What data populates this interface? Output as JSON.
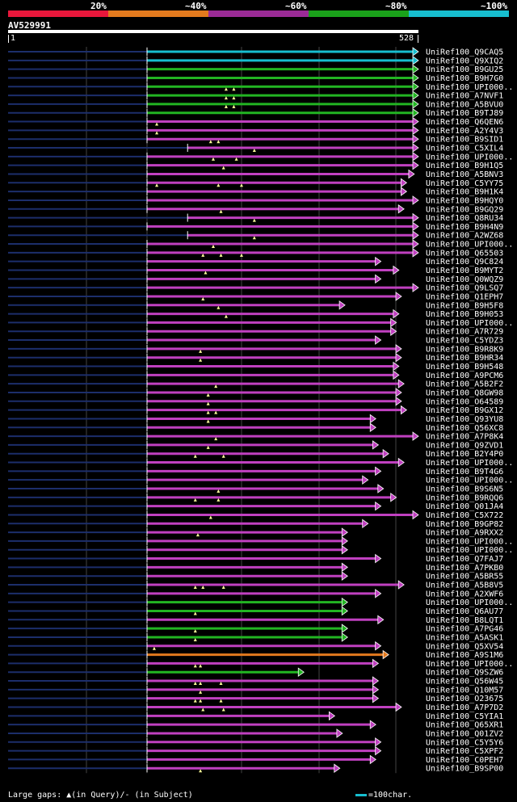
{
  "legend": {
    "labels": [
      "20%",
      "~40%",
      "~60%",
      "~80%",
      "~100%"
    ],
    "colors": [
      "#e8173b",
      "#e37a1e",
      "#9b2b96",
      "#1aa11a",
      "#17becf"
    ]
  },
  "query": {
    "title": "AV529991",
    "start_label": "1",
    "end_label": "528",
    "length": 528
  },
  "colors": {
    "magenta": "#c040c0",
    "green": "#22b522",
    "cyan": "#17becf",
    "orange": "#e37a1e",
    "navy": "#1c2e6b",
    "grid": "#444444",
    "gap_marker": "#ffff9a"
  },
  "footer": {
    "gaps_text": "Large gaps: ▲(in Query)/- (in Subject)",
    "scale_text": "=100char."
  },
  "hits": [
    {
      "name": "UniRef100_Q9CAQ5",
      "color": "cyan",
      "start": 1,
      "end": 528,
      "gaps": []
    },
    {
      "name": "UniRef100_Q9XIQ2",
      "color": "cyan",
      "start": 1,
      "end": 528,
      "gaps": []
    },
    {
      "name": "UniRef100_B9GU25",
      "color": "green",
      "start": 1,
      "end": 528,
      "gaps": []
    },
    {
      "name": "UniRef100_B9H7G0",
      "color": "green",
      "start": 1,
      "end": 528,
      "gaps": []
    },
    {
      "name": "UniRef100_UPI000..",
      "color": "green",
      "start": 1,
      "end": 528,
      "gaps": [
        155,
        170
      ]
    },
    {
      "name": "UniRef100_A7NVF1",
      "color": "green",
      "start": 1,
      "end": 528,
      "gaps": [
        155,
        170
      ]
    },
    {
      "name": "UniRef100_A5BVU0",
      "color": "green",
      "start": 1,
      "end": 528,
      "gaps": [
        155,
        170
      ]
    },
    {
      "name": "UniRef100_B9TJ89",
      "color": "green",
      "start": 1,
      "end": 528,
      "gaps": []
    },
    {
      "name": "UniRef100_Q6QEN6",
      "color": "magenta",
      "start": 1,
      "end": 528,
      "gaps": [
        20
      ]
    },
    {
      "name": "UniRef100_A2Y4V3",
      "color": "magenta",
      "start": 1,
      "end": 528,
      "gaps": [
        20
      ]
    },
    {
      "name": "UniRef100_B9SID1",
      "color": "magenta",
      "start": 1,
      "end": 528,
      "gaps": [
        125,
        140
      ]
    },
    {
      "name": "UniRef100_C5XIL4",
      "color": "magenta",
      "start": 80,
      "end": 528,
      "gaps": [
        210
      ]
    },
    {
      "name": "UniRef100_UPI000..",
      "color": "magenta",
      "start": 1,
      "end": 528,
      "gaps": [
        130,
        175
      ]
    },
    {
      "name": "UniRef100_B9H1Q5",
      "color": "magenta",
      "start": 1,
      "end": 528,
      "gaps": [
        150
      ]
    },
    {
      "name": "UniRef100_A5BNV3",
      "color": "magenta",
      "start": 1,
      "end": 520,
      "gaps": []
    },
    {
      "name": "UniRef100_C5YY75",
      "color": "magenta",
      "start": 1,
      "end": 505,
      "gaps": [
        20,
        140,
        185
      ]
    },
    {
      "name": "UniRef100_B9H1K4",
      "color": "magenta",
      "start": 1,
      "end": 505,
      "gaps": []
    },
    {
      "name": "UniRef100_B9HQY0",
      "color": "magenta",
      "start": 1,
      "end": 528,
      "gaps": []
    },
    {
      "name": "UniRef100_B9GQ29",
      "color": "magenta",
      "start": 1,
      "end": 500,
      "gaps": [
        145
      ]
    },
    {
      "name": "UniRef100_Q8RU34",
      "color": "magenta",
      "start": 80,
      "end": 528,
      "gaps": [
        210
      ]
    },
    {
      "name": "UniRef100_B9H4N9",
      "color": "magenta",
      "start": 1,
      "end": 528,
      "gaps": []
    },
    {
      "name": "UniRef100_A2WZ68",
      "color": "magenta",
      "start": 80,
      "end": 528,
      "gaps": [
        210
      ]
    },
    {
      "name": "UniRef100_UPI000..",
      "color": "magenta",
      "start": 1,
      "end": 528,
      "gaps": [
        130
      ]
    },
    {
      "name": "UniRef100_Q65503",
      "color": "magenta",
      "start": 1,
      "end": 528,
      "gaps": [
        110,
        145,
        185
      ]
    },
    {
      "name": "UniRef100_Q9C824",
      "color": "magenta",
      "start": 1,
      "end": 455,
      "gaps": []
    },
    {
      "name": "UniRef100_B9MYT2",
      "color": "magenta",
      "start": 1,
      "end": 490,
      "gaps": [
        115
      ]
    },
    {
      "name": "UniRef100_Q0WQZ9",
      "color": "magenta",
      "start": 1,
      "end": 455,
      "gaps": []
    },
    {
      "name": "UniRef100_Q9LSQ7",
      "color": "magenta",
      "start": 1,
      "end": 528,
      "gaps": []
    },
    {
      "name": "UniRef100_Q1EPH7",
      "color": "magenta",
      "start": 1,
      "end": 495,
      "gaps": [
        110
      ]
    },
    {
      "name": "UniRef100_B9H5F8",
      "color": "magenta",
      "start": 1,
      "end": 385,
      "gaps": [
        140
      ]
    },
    {
      "name": "UniRef100_B9H053",
      "color": "magenta",
      "start": 1,
      "end": 490,
      "gaps": [
        155
      ]
    },
    {
      "name": "UniRef100_UPI000..",
      "color": "magenta",
      "start": 1,
      "end": 485,
      "gaps": []
    },
    {
      "name": "UniRef100_A7R729",
      "color": "magenta",
      "start": 1,
      "end": 485,
      "gaps": []
    },
    {
      "name": "UniRef100_C5YDZ3",
      "color": "magenta",
      "start": 1,
      "end": 455,
      "gaps": []
    },
    {
      "name": "UniRef100_B9R8K9",
      "color": "magenta",
      "start": 1,
      "end": 495,
      "gaps": [
        105
      ]
    },
    {
      "name": "UniRef100_B9HR34",
      "color": "magenta",
      "start": 1,
      "end": 495,
      "gaps": [
        105
      ]
    },
    {
      "name": "UniRef100_B9H548",
      "color": "magenta",
      "start": 1,
      "end": 490,
      "gaps": []
    },
    {
      "name": "UniRef100_A9PCM6",
      "color": "magenta",
      "start": 1,
      "end": 490,
      "gaps": []
    },
    {
      "name": "UniRef100_A5B2F2",
      "color": "magenta",
      "start": 1,
      "end": 500,
      "gaps": [
        135
      ]
    },
    {
      "name": "UniRef100_Q8GW98",
      "color": "magenta",
      "start": 1,
      "end": 495,
      "gaps": [
        120
      ]
    },
    {
      "name": "UniRef100_O64589",
      "color": "magenta",
      "start": 1,
      "end": 495,
      "gaps": [
        120
      ]
    },
    {
      "name": "UniRef100_B9GX12",
      "color": "magenta",
      "start": 1,
      "end": 505,
      "gaps": [
        120,
        135
      ]
    },
    {
      "name": "UniRef100_Q93YU8",
      "color": "magenta",
      "start": 1,
      "end": 445,
      "gaps": [
        120
      ]
    },
    {
      "name": "UniRef100_Q56XC8",
      "color": "magenta",
      "start": 1,
      "end": 445,
      "gaps": []
    },
    {
      "name": "UniRef100_A7P8K4",
      "color": "magenta",
      "start": 1,
      "end": 528,
      "gaps": [
        135
      ]
    },
    {
      "name": "UniRef100_Q9ZVD1",
      "color": "magenta",
      "start": 1,
      "end": 450,
      "gaps": [
        120
      ]
    },
    {
      "name": "UniRef100_B2Y4P0",
      "color": "magenta",
      "start": 1,
      "end": 470,
      "gaps": [
        95,
        150
      ]
    },
    {
      "name": "UniRef100_UPI000..",
      "color": "magenta",
      "start": 1,
      "end": 500,
      "gaps": []
    },
    {
      "name": "UniRef100_B9T4G6",
      "color": "magenta",
      "start": 1,
      "end": 455,
      "gaps": []
    },
    {
      "name": "UniRef100_UPI000..",
      "color": "magenta",
      "start": 1,
      "end": 430,
      "gaps": []
    },
    {
      "name": "UniRef100_B9S6N5",
      "color": "magenta",
      "start": 1,
      "end": 460,
      "gaps": [
        140
      ]
    },
    {
      "name": "UniRef100_B9RQQ6",
      "color": "magenta",
      "start": 1,
      "end": 485,
      "gaps": [
        95,
        140
      ]
    },
    {
      "name": "UniRef100_Q01JA4",
      "color": "magenta",
      "start": 1,
      "end": 455,
      "gaps": []
    },
    {
      "name": "UniRef100_C5X722",
      "color": "magenta",
      "start": 1,
      "end": 528,
      "gaps": [
        125
      ]
    },
    {
      "name": "UniRef100_B9GP82",
      "color": "magenta",
      "start": 1,
      "end": 430,
      "gaps": []
    },
    {
      "name": "UniRef100_A9RXX2",
      "color": "magenta",
      "start": 1,
      "end": 390,
      "gaps": [
        100
      ]
    },
    {
      "name": "UniRef100_UPI000..",
      "color": "magenta",
      "start": 1,
      "end": 390,
      "gaps": []
    },
    {
      "name": "UniRef100_UPI000..",
      "color": "magenta",
      "start": 1,
      "end": 390,
      "gaps": []
    },
    {
      "name": "UniRef100_Q7FAJ7",
      "color": "magenta",
      "start": 1,
      "end": 455,
      "gaps": []
    },
    {
      "name": "UniRef100_A7PKB0",
      "color": "magenta",
      "start": 1,
      "end": 390,
      "gaps": []
    },
    {
      "name": "UniRef100_A5BR55",
      "color": "magenta",
      "start": 1,
      "end": 390,
      "gaps": []
    },
    {
      "name": "UniRef100_A5B8V5",
      "color": "magenta",
      "start": 1,
      "end": 500,
      "gaps": [
        95,
        110,
        150
      ]
    },
    {
      "name": "UniRef100_A2XWF6",
      "color": "magenta",
      "start": 1,
      "end": 455,
      "gaps": []
    },
    {
      "name": "UniRef100_UPI000..",
      "color": "green",
      "start": 1,
      "end": 390,
      "gaps": []
    },
    {
      "name": "UniRef100_Q6AU77",
      "color": "green",
      "start": 1,
      "end": 390,
      "gaps": [
        95
      ]
    },
    {
      "name": "UniRef100_B8LQT1",
      "color": "magenta",
      "start": 1,
      "end": 460,
      "gaps": []
    },
    {
      "name": "UniRef100_A7PG46",
      "color": "green",
      "start": 1,
      "end": 390,
      "gaps": [
        95
      ]
    },
    {
      "name": "UniRef100_A5ASK1",
      "color": "green",
      "start": 1,
      "end": 390,
      "gaps": [
        95
      ]
    },
    {
      "name": "UniRef100_Q5XV54",
      "color": "magenta",
      "start": 1,
      "end": 455,
      "gaps": [
        15
      ]
    },
    {
      "name": "UniRef100_A9S1M6",
      "color": "orange",
      "start": 1,
      "end": 470,
      "gaps": []
    },
    {
      "name": "UniRef100_UPI000..",
      "color": "magenta",
      "start": 1,
      "end": 450,
      "gaps": [
        95,
        105
      ]
    },
    {
      "name": "UniRef100_Q9SZW6",
      "color": "green",
      "start": 1,
      "end": 305,
      "gaps": []
    },
    {
      "name": "UniRef100_Q56W45",
      "color": "magenta",
      "start": 1,
      "end": 450,
      "gaps": [
        95,
        105,
        145
      ]
    },
    {
      "name": "UniRef100_Q10M57",
      "color": "magenta",
      "start": 1,
      "end": 450,
      "gaps": [
        105
      ]
    },
    {
      "name": "UniRef100_O23675",
      "color": "magenta",
      "start": 1,
      "end": 450,
      "gaps": [
        95,
        105,
        145
      ]
    },
    {
      "name": "UniRef100_A7P7D2",
      "color": "magenta",
      "start": 1,
      "end": 495,
      "gaps": [
        110,
        150
      ]
    },
    {
      "name": "UniRef100_C5YIA1",
      "color": "magenta",
      "start": 1,
      "end": 365,
      "gaps": []
    },
    {
      "name": "UniRef100_Q65XR1",
      "color": "magenta",
      "start": 1,
      "end": 445,
      "gaps": []
    },
    {
      "name": "UniRef100_Q01ZV2",
      "color": "magenta",
      "start": 1,
      "end": 380,
      "gaps": []
    },
    {
      "name": "UniRef100_C5Y5Y6",
      "color": "magenta",
      "start": 1,
      "end": 455,
      "gaps": []
    },
    {
      "name": "UniRef100_C5XPF2",
      "color": "magenta",
      "start": 1,
      "end": 455,
      "gaps": []
    },
    {
      "name": "UniRef100_C0PEH7",
      "color": "magenta",
      "start": 1,
      "end": 445,
      "gaps": []
    },
    {
      "name": "UniRef100_B9SP00",
      "color": "magenta",
      "start": 1,
      "end": 375,
      "gaps": [
        105
      ]
    }
  ]
}
